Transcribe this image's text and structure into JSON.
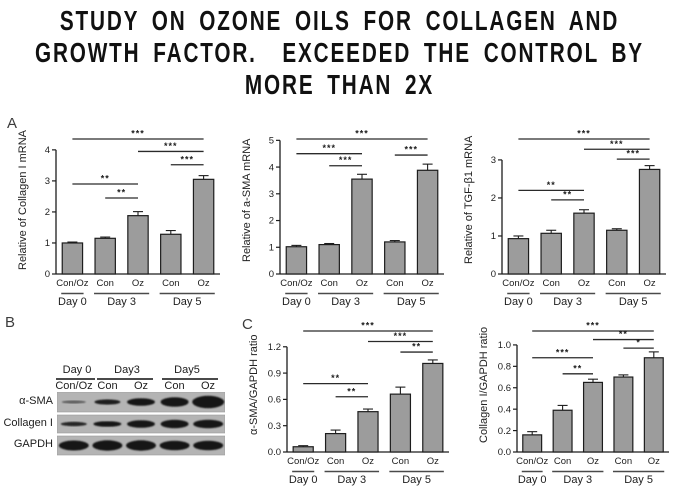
{
  "title": {
    "lines": [
      "STUDY ON OZONE OILS FOR COLLAGEN AND",
      "GROWTH FACTOR.  EXCEEDED THE CONTROL BY",
      "MORE THAN 2X"
    ]
  },
  "panels": {
    "a": "A",
    "b": "B",
    "c": "C"
  },
  "colors": {
    "bar_fill": "#9c9c9c",
    "bar_stroke": "#1d1d1d",
    "axis": "#1d1d1d",
    "text": "#1d1d1d",
    "sig_line": "#2a2a2a",
    "blot_bg": "#b4b4b4",
    "blot_band": "#121212",
    "title_text": "#111111"
  },
  "chart_data": [
    {
      "id": "collagen-i-mrna",
      "panel": "A",
      "type": "bar",
      "ylabel": "Relative of Collagen I mRNA",
      "xlabel": "",
      "categories": [
        "Con/Oz",
        "Con",
        "Oz",
        "Con",
        "Oz"
      ],
      "groups": [
        {
          "label": "Day 0",
          "from": 0,
          "to": 0
        },
        {
          "label": "Day 3",
          "from": 1,
          "to": 2
        },
        {
          "label": "Day 5",
          "from": 3,
          "to": 4
        }
      ],
      "values": [
        1.0,
        1.15,
        1.88,
        1.28,
        3.05
      ],
      "errors": [
        0.03,
        0.04,
        0.13,
        0.12,
        0.12
      ],
      "ylim": [
        0,
        4
      ],
      "yticks": [
        0,
        1,
        2,
        3,
        4
      ],
      "ytick_labels": [
        "0",
        "1",
        "2",
        "3",
        "4"
      ],
      "significance": [
        {
          "from": 0,
          "to": 4,
          "y": 4.35,
          "label": "***"
        },
        {
          "from": 2,
          "to": 4,
          "y": 3.95,
          "label": "***"
        },
        {
          "from": 3,
          "to": 4,
          "y": 3.52,
          "label": "***"
        },
        {
          "from": 0,
          "to": 2,
          "y": 2.9,
          "label": "**"
        },
        {
          "from": 1,
          "to": 2,
          "y": 2.45,
          "label": "**"
        }
      ]
    },
    {
      "id": "a-sma-mrna",
      "panel": "A",
      "type": "bar",
      "ylabel": "Relative of a-SMA mRNA",
      "xlabel": "",
      "categories": [
        "Con/Oz",
        "Con",
        "Oz",
        "Con",
        "Oz"
      ],
      "groups": [
        {
          "label": "Day 0",
          "from": 0,
          "to": 0
        },
        {
          "label": "Day 3",
          "from": 1,
          "to": 2
        },
        {
          "label": "Day 5",
          "from": 3,
          "to": 4
        }
      ],
      "values": [
        1.02,
        1.1,
        3.55,
        1.2,
        3.88
      ],
      "errors": [
        0.05,
        0.04,
        0.18,
        0.05,
        0.23
      ],
      "ylim": [
        0,
        5
      ],
      "yticks": [
        0,
        1,
        2,
        3,
        4,
        5
      ],
      "ytick_labels": [
        "0",
        "1",
        "2",
        "3",
        "4",
        "5"
      ],
      "significance": [
        {
          "from": 0,
          "to": 4,
          "y": 5.05,
          "label": "***"
        },
        {
          "from": 0,
          "to": 2,
          "y": 4.5,
          "label": "***"
        },
        {
          "from": 1,
          "to": 2,
          "y": 4.05,
          "label": "***"
        },
        {
          "from": 3,
          "to": 4,
          "y": 4.45,
          "label": "***"
        }
      ]
    },
    {
      "id": "tgf-b1-mrna",
      "panel": "A",
      "type": "bar",
      "ylabel": "Relative of TGF-β1 mRNA",
      "xlabel": "",
      "categories": [
        "Con/Oz",
        "Con",
        "Oz",
        "Con",
        "Oz"
      ],
      "groups": [
        {
          "label": "Day 0",
          "from": 0,
          "to": 0
        },
        {
          "label": "Day 3",
          "from": 1,
          "to": 2
        },
        {
          "label": "Day 5",
          "from": 3,
          "to": 4
        }
      ],
      "values": [
        0.93,
        1.07,
        1.6,
        1.15,
        2.75
      ],
      "errors": [
        0.07,
        0.08,
        0.09,
        0.04,
        0.1
      ],
      "ylim": [
        0,
        3
      ],
      "yticks": [
        0,
        1,
        2,
        3
      ],
      "ytick_labels": [
        "0",
        "1",
        "2",
        "3"
      ],
      "significance": [
        {
          "from": 0,
          "to": 4,
          "y": 3.55,
          "label": "***"
        },
        {
          "from": 2,
          "to": 4,
          "y": 3.28,
          "label": "***"
        },
        {
          "from": 3,
          "to": 4,
          "y": 3.02,
          "label": "***"
        },
        {
          "from": 0,
          "to": 2,
          "y": 2.2,
          "label": "**"
        },
        {
          "from": 1,
          "to": 2,
          "y": 1.95,
          "label": "**"
        }
      ]
    },
    {
      "id": "a-sma-gapdh-ratio",
      "panel": "C",
      "type": "bar",
      "ylabel": "α-SMA/GAPDH ratio",
      "xlabel": "",
      "categories": [
        "Con/Oz",
        "Con",
        "Oz",
        "Con",
        "Oz"
      ],
      "groups": [
        {
          "label": "Day 0",
          "from": 0,
          "to": 0
        },
        {
          "label": "Day 3",
          "from": 1,
          "to": 2
        },
        {
          "label": "Day 5",
          "from": 3,
          "to": 4
        }
      ],
      "values": [
        0.06,
        0.21,
        0.46,
        0.66,
        1.01
      ],
      "errors": [
        0.012,
        0.04,
        0.03,
        0.08,
        0.04
      ],
      "ylim": [
        0,
        1.2
      ],
      "yticks": [
        0,
        0.3,
        0.6,
        0.9,
        1.2
      ],
      "ytick_labels": [
        "0.0",
        "0.3",
        "0.6",
        "0.9",
        "1.2"
      ],
      "significance": [
        {
          "from": 0,
          "to": 4,
          "y": 1.38,
          "label": "***"
        },
        {
          "from": 2,
          "to": 4,
          "y": 1.26,
          "label": "***"
        },
        {
          "from": 3,
          "to": 4,
          "y": 1.14,
          "label": "**"
        },
        {
          "from": 0,
          "to": 2,
          "y": 0.78,
          "label": "**"
        },
        {
          "from": 1,
          "to": 2,
          "y": 0.63,
          "label": "**"
        }
      ]
    },
    {
      "id": "collagen-i-gapdh-ratio",
      "panel": "C",
      "type": "bar",
      "ylabel": "Collagen I/GAPDH ratio",
      "xlabel": "",
      "categories": [
        "Con/Oz",
        "Con",
        "Oz",
        "Con",
        "Oz"
      ],
      "groups": [
        {
          "label": "Day 0",
          "from": 0,
          "to": 0
        },
        {
          "label": "Day 3",
          "from": 1,
          "to": 2
        },
        {
          "label": "Day 5",
          "from": 3,
          "to": 4
        }
      ],
      "values": [
        0.16,
        0.39,
        0.65,
        0.7,
        0.88
      ],
      "errors": [
        0.03,
        0.045,
        0.03,
        0.02,
        0.055
      ],
      "ylim": [
        0,
        1.0
      ],
      "yticks": [
        0,
        0.2,
        0.4,
        0.6,
        0.8,
        1.0
      ],
      "ytick_labels": [
        "0.0",
        "0.2",
        "0.4",
        "0.6",
        "0.8",
        "1.0"
      ],
      "significance": [
        {
          "from": 0,
          "to": 4,
          "y": 1.13,
          "label": "***"
        },
        {
          "from": 2,
          "to": 4,
          "y": 1.05,
          "label": "**"
        },
        {
          "from": 3,
          "to": 4,
          "y": 0.97,
          "label": "*"
        },
        {
          "from": 0,
          "to": 2,
          "y": 0.88,
          "label": "***"
        },
        {
          "from": 1,
          "to": 2,
          "y": 0.73,
          "label": "**"
        }
      ]
    }
  ],
  "blot": {
    "day_groups": [
      {
        "label": "Day 0"
      },
      {
        "label": "Day3"
      },
      {
        "label": "Day5"
      }
    ],
    "lane_labels": [
      "Con/Oz",
      "Con",
      "Oz",
      "Con",
      "Oz"
    ],
    "rows": [
      {
        "label": "α-SMA",
        "bands": [
          {
            "width": 12,
            "thickness": 1.5,
            "intensity": 0.55
          },
          {
            "width": 13,
            "thickness": 2.6,
            "intensity": 0.95
          },
          {
            "width": 14,
            "thickness": 3.8,
            "intensity": 1
          },
          {
            "width": 14,
            "thickness": 4.8,
            "intensity": 1
          },
          {
            "width": 16,
            "thickness": 6.2,
            "intensity": 1
          }
        ]
      },
      {
        "label": "Collagen I",
        "bands": [
          {
            "width": 13,
            "thickness": 2.2,
            "intensity": 0.9
          },
          {
            "width": 14,
            "thickness": 2.8,
            "intensity": 1
          },
          {
            "width": 14,
            "thickness": 3.8,
            "intensity": 1
          },
          {
            "width": 14,
            "thickness": 4.2,
            "intensity": 1
          },
          {
            "width": 15,
            "thickness": 4.2,
            "intensity": 1
          }
        ]
      },
      {
        "label": "GAPDH",
        "bands": [
          {
            "width": 15,
            "thickness": 5.0,
            "intensity": 1
          },
          {
            "width": 15,
            "thickness": 5.2,
            "intensity": 1
          },
          {
            "width": 15,
            "thickness": 5.2,
            "intensity": 1
          },
          {
            "width": 15,
            "thickness": 4.8,
            "intensity": 1
          },
          {
            "width": 15,
            "thickness": 4.8,
            "intensity": 1
          }
        ]
      }
    ]
  }
}
